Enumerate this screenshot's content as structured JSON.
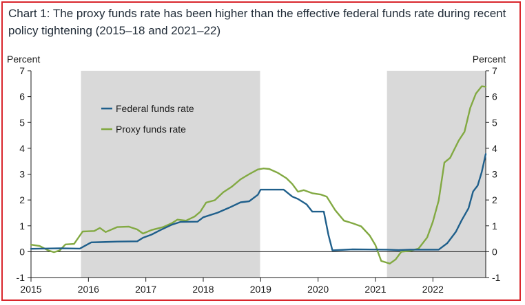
{
  "title": "Chart 1: The proxy funds rate has been higher than the effective federal funds rate during recent policy tightening (2015–18 and 2021–22)",
  "chart_data": {
    "type": "line",
    "ylabel_left": "Percent",
    "ylabel_right": "Percent",
    "ylim": [
      -1,
      7
    ],
    "yticks": [
      -1,
      0,
      1,
      2,
      3,
      4,
      5,
      6,
      7
    ],
    "xlim": [
      2015,
      2022.92
    ],
    "xticks": [
      "2015",
      "2016",
      "2017",
      "2018",
      "2019",
      "2020",
      "2021",
      "2022"
    ],
    "shaded_periods": [
      [
        2015.87,
        2018.99
      ],
      [
        2021.2,
        2022.92
      ]
    ],
    "legend_position": "upper-left",
    "grid": false,
    "series": [
      {
        "name": "Federal funds rate",
        "color": "#1f5f8b",
        "points": [
          [
            2015.0,
            0.11
          ],
          [
            2015.5,
            0.13
          ],
          [
            2015.85,
            0.12
          ],
          [
            2015.95,
            0.24
          ],
          [
            2016.05,
            0.36
          ],
          [
            2016.2,
            0.37
          ],
          [
            2016.5,
            0.39
          ],
          [
            2016.85,
            0.4
          ],
          [
            2016.95,
            0.54
          ],
          [
            2017.1,
            0.66
          ],
          [
            2017.25,
            0.83
          ],
          [
            2017.45,
            1.04
          ],
          [
            2017.6,
            1.15
          ],
          [
            2017.9,
            1.16
          ],
          [
            2018.0,
            1.33
          ],
          [
            2018.25,
            1.51
          ],
          [
            2018.45,
            1.7
          ],
          [
            2018.65,
            1.91
          ],
          [
            2018.8,
            1.95
          ],
          [
            2018.95,
            2.2
          ],
          [
            2019.0,
            2.4
          ],
          [
            2019.4,
            2.4
          ],
          [
            2019.55,
            2.13
          ],
          [
            2019.65,
            2.04
          ],
          [
            2019.8,
            1.83
          ],
          [
            2019.9,
            1.55
          ],
          [
            2020.1,
            1.55
          ],
          [
            2020.18,
            0.65
          ],
          [
            2020.25,
            0.05
          ],
          [
            2020.6,
            0.09
          ],
          [
            2021.2,
            0.08
          ],
          [
            2021.4,
            0.06
          ],
          [
            2021.6,
            0.08
          ],
          [
            2022.1,
            0.08
          ],
          [
            2022.25,
            0.33
          ],
          [
            2022.4,
            0.77
          ],
          [
            2022.5,
            1.21
          ],
          [
            2022.62,
            1.68
          ],
          [
            2022.7,
            2.33
          ],
          [
            2022.78,
            2.56
          ],
          [
            2022.85,
            3.08
          ],
          [
            2022.92,
            3.78
          ]
        ]
      },
      {
        "name": "Proxy funds rate",
        "color": "#82a942",
        "points": [
          [
            2015.0,
            0.27
          ],
          [
            2015.15,
            0.22
          ],
          [
            2015.3,
            0.05
          ],
          [
            2015.4,
            -0.02
          ],
          [
            2015.5,
            0.05
          ],
          [
            2015.6,
            0.28
          ],
          [
            2015.75,
            0.3
          ],
          [
            2015.9,
            0.78
          ],
          [
            2016.1,
            0.8
          ],
          [
            2016.2,
            0.92
          ],
          [
            2016.3,
            0.76
          ],
          [
            2016.5,
            0.95
          ],
          [
            2016.7,
            0.97
          ],
          [
            2016.85,
            0.86
          ],
          [
            2016.95,
            0.7
          ],
          [
            2017.1,
            0.84
          ],
          [
            2017.3,
            0.95
          ],
          [
            2017.45,
            1.1
          ],
          [
            2017.55,
            1.24
          ],
          [
            2017.7,
            1.2
          ],
          [
            2017.85,
            1.36
          ],
          [
            2017.95,
            1.55
          ],
          [
            2018.05,
            1.9
          ],
          [
            2018.2,
            1.99
          ],
          [
            2018.35,
            2.3
          ],
          [
            2018.5,
            2.52
          ],
          [
            2018.65,
            2.8
          ],
          [
            2018.8,
            3.0
          ],
          [
            2018.95,
            3.18
          ],
          [
            2019.05,
            3.22
          ],
          [
            2019.15,
            3.2
          ],
          [
            2019.3,
            3.05
          ],
          [
            2019.45,
            2.84
          ],
          [
            2019.55,
            2.62
          ],
          [
            2019.65,
            2.32
          ],
          [
            2019.75,
            2.38
          ],
          [
            2019.9,
            2.26
          ],
          [
            2020.05,
            2.21
          ],
          [
            2020.15,
            2.13
          ],
          [
            2020.3,
            1.6
          ],
          [
            2020.45,
            1.2
          ],
          [
            2020.6,
            1.1
          ],
          [
            2020.75,
            0.98
          ],
          [
            2020.9,
            0.62
          ],
          [
            2021.0,
            0.25
          ],
          [
            2021.1,
            -0.36
          ],
          [
            2021.25,
            -0.46
          ],
          [
            2021.35,
            -0.3
          ],
          [
            2021.45,
            0.0
          ],
          [
            2021.6,
            0.03
          ],
          [
            2021.75,
            0.12
          ],
          [
            2021.9,
            0.55
          ],
          [
            2022.0,
            1.16
          ],
          [
            2022.1,
            1.98
          ],
          [
            2022.2,
            3.45
          ],
          [
            2022.3,
            3.63
          ],
          [
            2022.45,
            4.3
          ],
          [
            2022.55,
            4.64
          ],
          [
            2022.65,
            5.56
          ],
          [
            2022.75,
            6.12
          ],
          [
            2022.85,
            6.4
          ],
          [
            2022.92,
            6.38
          ]
        ]
      }
    ]
  }
}
